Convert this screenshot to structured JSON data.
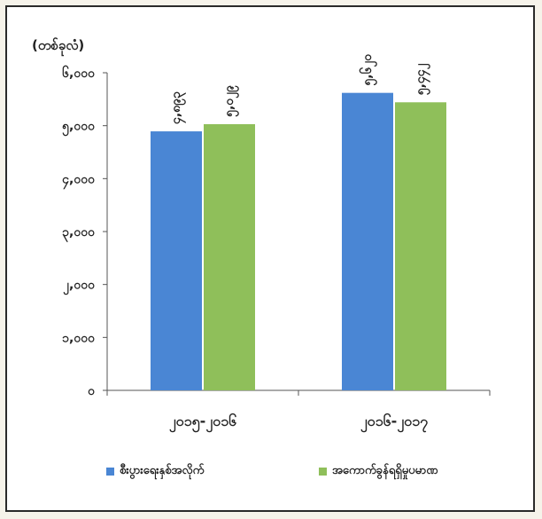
{
  "chart_data": {
    "type": "bar",
    "unit_label": "(တစ်ခုလံ)",
    "categories": [
      "၂၀၁၅-၂၀၁၆",
      "၂၀၁၆-၂၀၁၇"
    ],
    "series": [
      {
        "name": "စီးပွားရေးနှစ်အလိုက်",
        "color": "#4a86d4",
        "values": [
          4893,
          5620
        ],
        "value_labels": [
          "၄,၈၉၃",
          "၅,၆၂၀"
        ]
      },
      {
        "name": "အကောက်ခွန်ရရှိမှုပမာဏ",
        "color": "#8fbf5a",
        "values": [
          5029,
          5442
        ],
        "value_labels": [
          "၅,၀၂၉",
          "၅,၄၄၂"
        ]
      }
    ],
    "ylim": [
      0,
      6000
    ],
    "yticks": [
      0,
      1000,
      2000,
      3000,
      4000,
      5000,
      6000
    ],
    "ytick_labels": [
      "၀",
      "၁,၀၀၀",
      "၂,၀၀၀",
      "၃,၀၀၀",
      "၄,၀၀၀",
      "၅,၀၀၀",
      "၆,၀၀၀"
    ],
    "grid": false,
    "legend_position": "bottom"
  }
}
